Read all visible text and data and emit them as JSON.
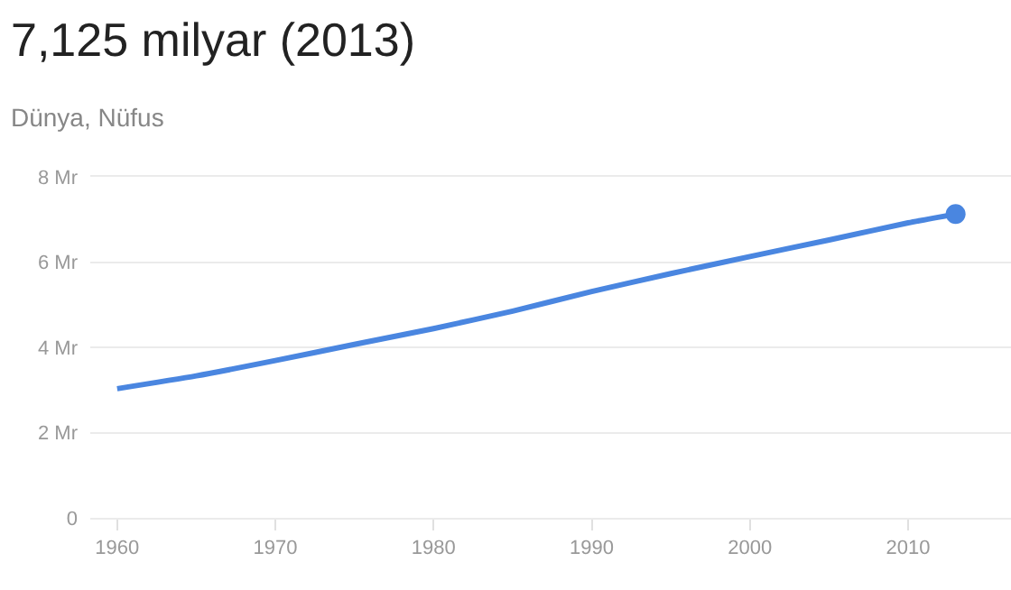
{
  "chart_data": {
    "type": "line",
    "title": "7,125 milyar (2013)",
    "subtitle": "Dünya, Nüfus",
    "xlim": [
      1958.3,
      2016.5
    ],
    "xticks": [
      1960,
      1970,
      1980,
      1990,
      2000,
      2010
    ],
    "ylim": [
      0,
      8
    ],
    "yticks": [
      {
        "value": 0,
        "label": "0"
      },
      {
        "value": 2,
        "label": "2 Mr"
      },
      {
        "value": 4,
        "label": "4 Mr"
      },
      {
        "value": 6,
        "label": "6 Mr"
      },
      {
        "value": 8,
        "label": "8 Mr"
      }
    ],
    "grid": "y",
    "series": [
      {
        "color": "#4a86e0",
        "x": [
          1960,
          1965,
          1970,
          1975,
          1980,
          1985,
          1990,
          1995,
          2000,
          2005,
          2010,
          2013
        ],
        "values": [
          3.03,
          3.33,
          3.69,
          4.07,
          4.44,
          4.85,
          5.31,
          5.73,
          6.13,
          6.52,
          6.92,
          7.125
        ]
      },
      {
        "type": "scatter",
        "color": "#4a86e0",
        "x": [
          2013
        ],
        "values": [
          7.125
        ]
      }
    ]
  }
}
